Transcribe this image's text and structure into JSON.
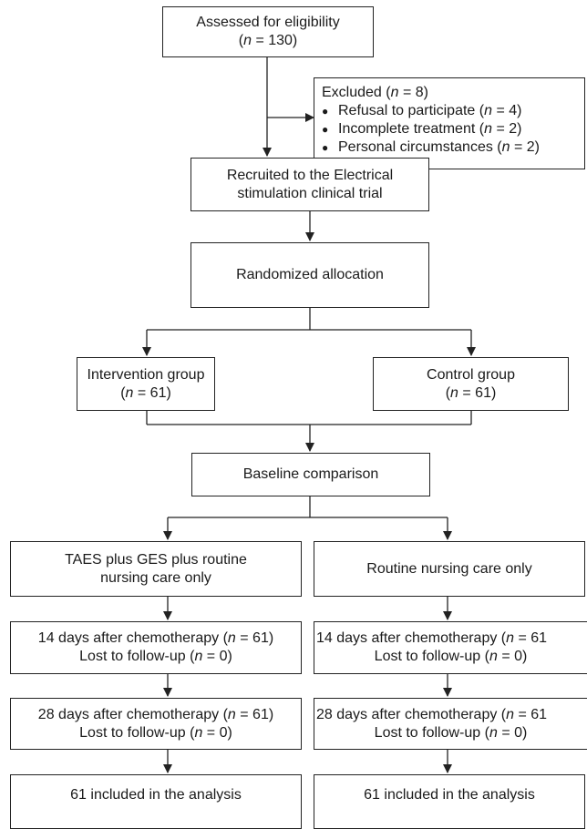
{
  "eligibility": {
    "title": "Assessed for eligibility",
    "n_label": "n",
    "n_value": "= 130)"
  },
  "excluded": {
    "title": "Excluded (",
    "n_label": "n",
    "n_value": "= 8)",
    "items": [
      {
        "text": "Refusal to participate (",
        "n": "n",
        "value": "= 4)"
      },
      {
        "text": "Incomplete treatment (",
        "n": "n",
        "value": "= 2)"
      },
      {
        "text": "Personal circumstances (",
        "n": "n",
        "value": "= 2)"
      }
    ]
  },
  "recruited": {
    "line1": "Recruited to the Electrical",
    "line2": "stimulation clinical trial"
  },
  "randomized": {
    "label": "Randomized allocation"
  },
  "groups": {
    "intervention": {
      "title": "Intervention group",
      "n_label": "n",
      "n_value": "= 61)"
    },
    "control": {
      "title": "Control group",
      "n_label": "n",
      "n_value": "= 61)"
    }
  },
  "baseline": {
    "label": "Baseline comparison"
  },
  "arms": {
    "left": {
      "treatment": {
        "line1": "TAES plus GES plus routine",
        "line2": "nursing care only"
      },
      "day14": {
        "line1": "14 days after chemotherapy (",
        "n1": "n",
        "v1": "= 61)",
        "line2": "Lost to follow-up (",
        "n2": "n",
        "v2": "= 0)"
      },
      "day28": {
        "line1": "28 days after chemotherapy (",
        "n1": "n",
        "v1": "= 61)",
        "line2": "Lost to follow-up (",
        "n2": "n",
        "v2": "= 0)"
      },
      "analysis": {
        "label": "61 included in the analysis"
      }
    },
    "right": {
      "treatment": {
        "line1": "Routine nursing care only"
      },
      "day14": {
        "line1": "14 days after chemotherapy (",
        "n1": "n",
        "v1": "= 61",
        "line2": "Lost to follow-up (",
        "n2": "n",
        "v2": "= 0)"
      },
      "day28": {
        "line1": "28 days after chemotherapy (",
        "n1": "n",
        "v1": "= 61",
        "line2": "Lost to follow-up (",
        "n2": "n",
        "v2": "= 0)"
      },
      "analysis": {
        "label": "61 included in the analysis"
      }
    }
  },
  "colors": {
    "line": "#222222",
    "background": "#ffffff"
  }
}
